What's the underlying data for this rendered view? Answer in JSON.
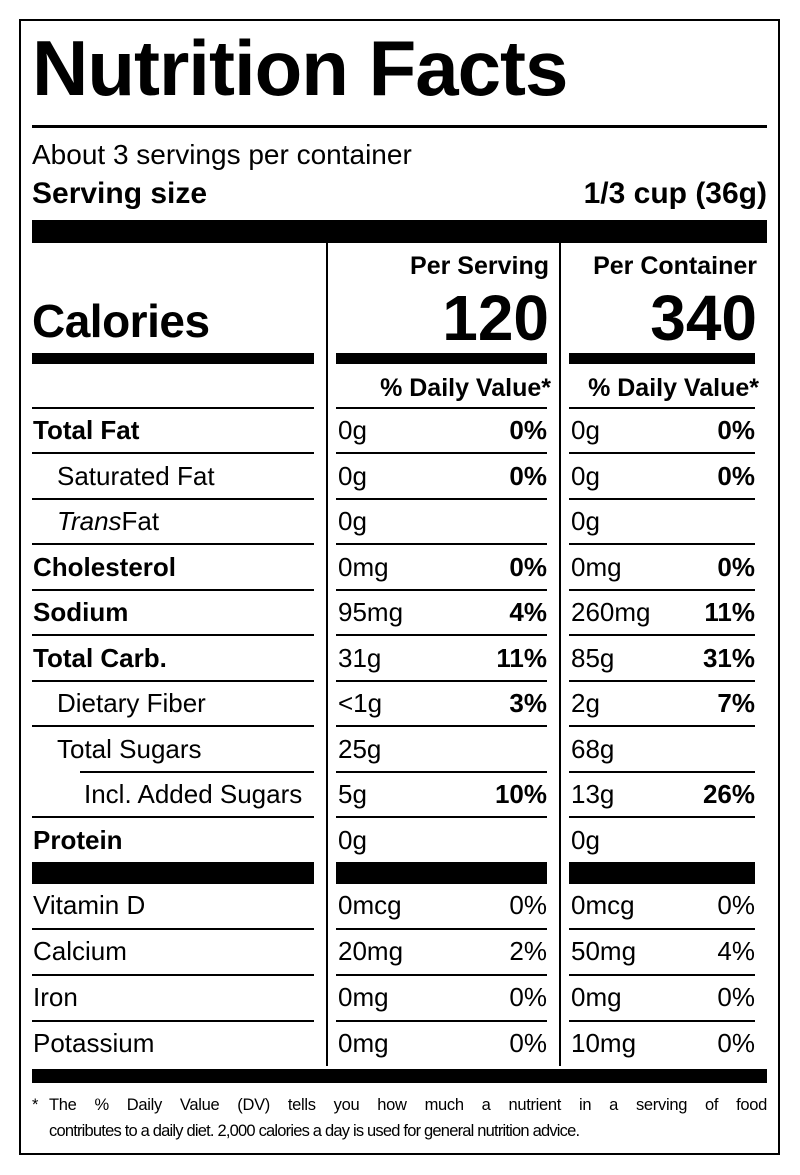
{
  "title": "Nutrition Facts",
  "header": {
    "servings_per_container": "About 3 servings per container",
    "serving_size_label": "Serving size",
    "serving_size_value": "1/3 cup (36g)"
  },
  "calories": {
    "label": "Calories",
    "per_serving_header": "Per Serving",
    "per_container_header": "Per Container",
    "per_serving_value": "120",
    "per_container_value": "340",
    "daily_value_header": "% Daily Value*"
  },
  "nutrients": [
    {
      "name": "Total Fat",
      "serving_amount": "0g",
      "serving_dv": "0%",
      "container_amount": "0g",
      "container_dv": "0%"
    },
    {
      "name": "Saturated Fat",
      "serving_amount": "0g",
      "serving_dv": "0%",
      "container_amount": "0g",
      "container_dv": "0%"
    },
    {
      "name_italic": "Trans",
      "name_rest": " Fat",
      "serving_amount": "0g",
      "serving_dv": "",
      "container_amount": "0g",
      "container_dv": ""
    },
    {
      "name": "Cholesterol",
      "serving_amount": "0mg",
      "serving_dv": "0%",
      "container_amount": "0mg",
      "container_dv": "0%"
    },
    {
      "name": "Sodium",
      "serving_amount": "95mg",
      "serving_dv": "4%",
      "container_amount": "260mg",
      "container_dv": "11%"
    },
    {
      "name": "Total Carb.",
      "serving_amount": "31g",
      "serving_dv": "11%",
      "container_amount": "85g",
      "container_dv": "31%"
    },
    {
      "name": "Dietary Fiber",
      "serving_amount": "<1g",
      "serving_dv": "3%",
      "container_amount": "2g",
      "container_dv": "7%"
    },
    {
      "name": "Total Sugars",
      "serving_amount": "25g",
      "serving_dv": "",
      "container_amount": "68g",
      "container_dv": ""
    },
    {
      "name": "Incl. Added Sugars",
      "serving_amount": "5g",
      "serving_dv": "10%",
      "container_amount": "13g",
      "container_dv": "26%"
    },
    {
      "name": "Protein",
      "serving_amount": "0g",
      "serving_dv": "",
      "container_amount": "0g",
      "container_dv": ""
    }
  ],
  "vitamins": [
    {
      "name": "Vitamin D",
      "serving_amount": "0mcg",
      "serving_dv": "0%",
      "container_amount": "0mcg",
      "container_dv": "0%"
    },
    {
      "name": "Calcium",
      "serving_amount": "20mg",
      "serving_dv": "2%",
      "container_amount": "50mg",
      "container_dv": "4%"
    },
    {
      "name": "Iron",
      "serving_amount": "0mg",
      "serving_dv": "0%",
      "container_amount": "0mg",
      "container_dv": "0%"
    },
    {
      "name": "Potassium",
      "serving_amount": "0mg",
      "serving_dv": "0%",
      "container_amount": "10mg",
      "container_dv": "0%"
    }
  ],
  "footnote": {
    "asterisk": "*",
    "line1": "The % Daily Value (DV) tells you how much a nutrient in a serving of food",
    "line2": "contributes to a daily diet. 2,000 calories a day is used for general nutrition advice."
  }
}
